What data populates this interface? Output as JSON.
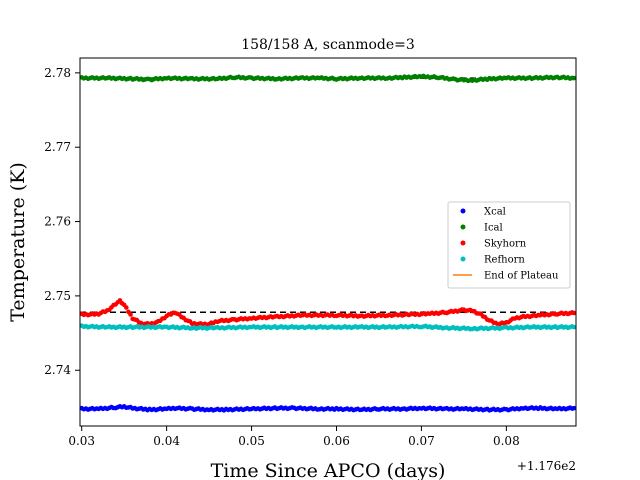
{
  "chart_data": {
    "type": "scatter",
    "title": "158/158 A, scanmode=3",
    "xlabel": "Time Since APCO (days)",
    "ylabel": "Temperature (K)",
    "x_offset_label": "+1.176e2",
    "xlim": [
      0.0298,
      0.0882
    ],
    "ylim": [
      2.7325,
      2.782
    ],
    "x_ticks": [
      0.03,
      0.04,
      0.05,
      0.06,
      0.07,
      0.08
    ],
    "x_tick_labels": [
      "0.03",
      "0.04",
      "0.05",
      "0.06",
      "0.07",
      "0.08"
    ],
    "y_ticks": [
      2.74,
      2.75,
      2.76,
      2.77,
      2.78
    ],
    "y_tick_labels": [
      "2.74",
      "2.75",
      "2.76",
      "2.77",
      "2.78"
    ],
    "grid": false,
    "legend_position": "center-right",
    "series": [
      {
        "name": "Xcal",
        "color": "#0000ff",
        "marker": "dot",
        "x": [
          0.03,
          0.032,
          0.034,
          0.035,
          0.036,
          0.038,
          0.04,
          0.041,
          0.043,
          0.045,
          0.047,
          0.05,
          0.053,
          0.055,
          0.058,
          0.06,
          0.063,
          0.065,
          0.068,
          0.07,
          0.073,
          0.075,
          0.078,
          0.08,
          0.082,
          0.084,
          0.086,
          0.088
        ],
        "y": [
          2.7348,
          2.7348,
          2.735,
          2.7351,
          2.7349,
          2.7347,
          2.7348,
          2.7349,
          2.7348,
          2.7347,
          2.7347,
          2.7348,
          2.7349,
          2.7349,
          2.7348,
          2.7348,
          2.7347,
          2.7348,
          2.7348,
          2.7349,
          2.7348,
          2.7348,
          2.7347,
          2.7347,
          2.7349,
          2.7349,
          2.7348,
          2.7349
        ]
      },
      {
        "name": "Ical",
        "color": "#008000",
        "marker": "dot",
        "x": [
          0.03,
          0.033,
          0.036,
          0.038,
          0.04,
          0.043,
          0.046,
          0.048,
          0.05,
          0.053,
          0.056,
          0.058,
          0.06,
          0.063,
          0.066,
          0.068,
          0.07,
          0.072,
          0.074,
          0.076,
          0.078,
          0.08,
          0.083,
          0.086,
          0.088
        ],
        "y": [
          2.7793,
          2.7793,
          2.7792,
          2.7791,
          2.7793,
          2.7792,
          2.7792,
          2.7794,
          2.7793,
          2.7792,
          2.7793,
          2.7793,
          2.7792,
          2.7793,
          2.7793,
          2.7794,
          2.7795,
          2.7794,
          2.7791,
          2.779,
          2.7792,
          2.7793,
          2.7793,
          2.7794,
          2.7793
        ]
      },
      {
        "name": "Skyhorn",
        "color": "#ff0000",
        "marker": "dot",
        "x": [
          0.03,
          0.031,
          0.032,
          0.033,
          0.034,
          0.0345,
          0.035,
          0.036,
          0.037,
          0.038,
          0.039,
          0.04,
          0.041,
          0.042,
          0.043,
          0.044,
          0.045,
          0.046,
          0.048,
          0.05,
          0.053,
          0.056,
          0.06,
          0.063,
          0.066,
          0.069,
          0.071,
          0.073,
          0.075,
          0.076,
          0.077,
          0.078,
          0.079,
          0.08,
          0.081,
          0.082,
          0.084,
          0.086,
          0.088
        ],
        "y": [
          2.7475,
          2.7475,
          2.7476,
          2.748,
          2.7489,
          2.7493,
          2.7488,
          2.747,
          2.7463,
          2.7462,
          2.7465,
          2.7473,
          2.7478,
          2.747,
          2.7463,
          2.7462,
          2.7462,
          2.7466,
          2.7468,
          2.747,
          2.7472,
          2.7474,
          2.7474,
          2.7473,
          2.7474,
          2.7475,
          2.7476,
          2.7478,
          2.7481,
          2.748,
          2.7475,
          2.7467,
          2.7462,
          2.7464,
          2.747,
          2.7472,
          2.7474,
          2.7476,
          2.7477
        ]
      },
      {
        "name": "Refhorn",
        "color": "#00bfbf",
        "marker": "dot",
        "x": [
          0.03,
          0.033,
          0.036,
          0.04,
          0.043,
          0.046,
          0.05,
          0.053,
          0.056,
          0.06,
          0.063,
          0.066,
          0.07,
          0.073,
          0.076,
          0.08,
          0.083,
          0.086,
          0.088
        ],
        "y": [
          2.7459,
          2.7458,
          2.7458,
          2.7458,
          2.7457,
          2.7457,
          2.7458,
          2.7458,
          2.7458,
          2.7458,
          2.7458,
          2.7458,
          2.7459,
          2.7457,
          2.7456,
          2.7457,
          2.7458,
          2.7458,
          2.7458
        ]
      },
      {
        "name": "End of Plateau",
        "color": "#ff7f0e",
        "marker": "line",
        "x": [],
        "y": []
      }
    ],
    "reference_lines": [
      {
        "y": 2.7793,
        "style": "dashed",
        "color": "#000000"
      },
      {
        "y": 2.7478,
        "style": "dashed",
        "color": "#000000"
      }
    ]
  }
}
